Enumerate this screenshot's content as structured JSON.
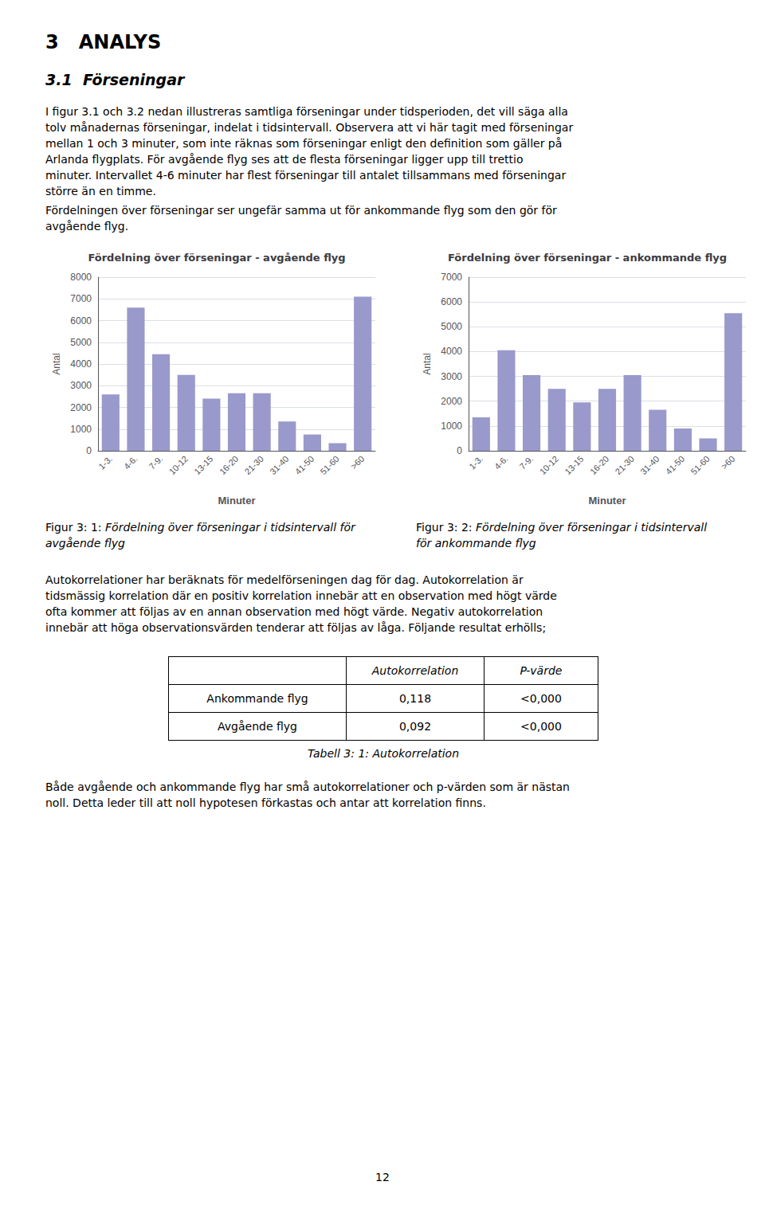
{
  "page_title": "3   ANALYS",
  "section_title": "3.1  Förseningar",
  "body_text_1": [
    "I figur 3.1 och 3.2 nedan illustreras samtliga förseningar under tidsperioden, det vill säga alla",
    "tolv månadernas förseningar, indelat i tidsintervall. Observera att vi här tagit med förseningar",
    "mellan 1 och 3 minuter, som inte räknas som förseningar enligt den definition som gäller på",
    "Arlanda flygplats. För avgående flyg ses att de flesta förseningar ligger upp till trettio",
    "minuter. Intervallet 4-6 minuter har flest förseningar till antalet tillsammans med förseningar",
    "större än en timme."
  ],
  "body_text_2": [
    "Fördelningen över förseningar ser ungefär samma ut för ankommande flyg som den gör för",
    "avgående flyg."
  ],
  "chart_data": [
    {
      "type": "bar",
      "title": "Fördelning över förseningar - avgående flyg",
      "categories": [
        "1-3.",
        "4-6.",
        "7-9.",
        "10-12",
        "13-15",
        "16-20",
        "21-30",
        "31-40",
        "41-50",
        "51-60",
        ">60"
      ],
      "values": [
        2600,
        6600,
        4450,
        3500,
        2400,
        2650,
        2650,
        1350,
        750,
        350,
        7100
      ],
      "color": "#9999cc",
      "xlabel": "Minuter",
      "ylabel": "Antal",
      "ylim": [
        0,
        8000
      ],
      "yticks": [
        0,
        1000,
        2000,
        3000,
        4000,
        5000,
        6000,
        7000,
        8000
      ],
      "grid": true,
      "caption_label": "Figur 3: 1: ",
      "caption_lines": [
        "Fördelning över förseningar i tidsintervall för avgående flyg"
      ]
    },
    {
      "type": "bar",
      "title": "Fördelning över förseningar - ankommande flyg",
      "categories": [
        "1-3.",
        "4-6.",
        "7-9.",
        "10-12",
        "13-15",
        "16-20",
        "21-30",
        "31-40",
        "41-50",
        "51-60",
        ">60"
      ],
      "values": [
        1350,
        4050,
        3050,
        2500,
        1950,
        2500,
        3050,
        1650,
        900,
        500,
        5550
      ],
      "color": "#9999cc",
      "xlabel": "Minuter",
      "ylabel": "Antal",
      "ylim": [
        0,
        7000
      ],
      "yticks": [
        0,
        1000,
        2000,
        3000,
        4000,
        5000,
        6000,
        7000
      ],
      "grid": true,
      "caption_label": "Figur 3: 2: ",
      "caption_lines": [
        "Fördelning över förseningar i tidsintervall",
        "för ankommande flyg"
      ]
    }
  ],
  "body_text_3": [
    "Autokorrelationer har beräknats för medelförseningen dag för dag. Autokorrelation är",
    "tidsmässig korrelation där en positiv korrelation innebär att en observation med högt värde",
    "ofta kommer att följas av en annan observation med högt värde. Negativ autokorrelation",
    "innebär att höga observationsvärden tenderar att följas av låga. Följande resultat erhölls;"
  ],
  "table": {
    "header": [
      "",
      "Autokorrelation",
      "P-värde"
    ],
    "rows": [
      [
        "Ankommande flyg",
        "0,118",
        "<0,000"
      ],
      [
        "Avgående flyg",
        "0,092",
        "<0,000"
      ]
    ],
    "caption": "Tabell 3: 1: Autokorrelation"
  },
  "body_text_4": [
    "Både avgående och ankommande flyg har små autokorrelationer och p-värden som är nästan",
    "noll. Detta leder till att noll hypotesen förkastas och antar att korrelation finns."
  ],
  "page_number": "12"
}
